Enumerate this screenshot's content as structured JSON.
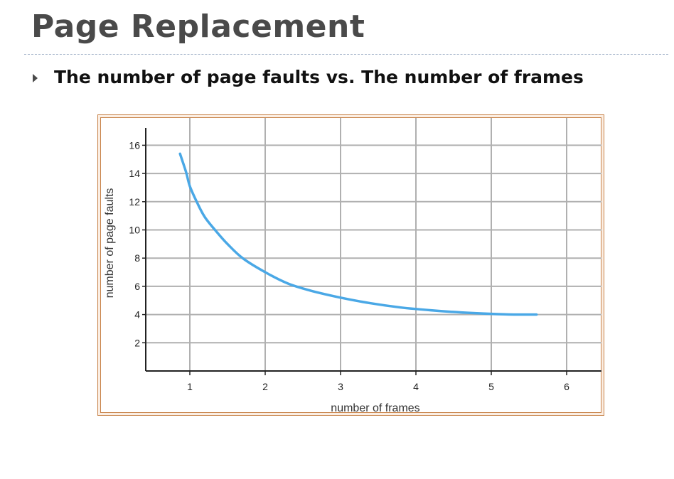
{
  "slide": {
    "title": "Page Replacement",
    "bullet": "The number of page faults vs. The number of frames"
  },
  "colors": {
    "title": "#4a4a4a",
    "curve": "#4aa8e6",
    "grid": "#b0b0b0",
    "frame": "#c8834a"
  },
  "chart_data": {
    "type": "line",
    "title": "",
    "xlabel": "number of frames",
    "ylabel": "number of page faults",
    "xlim": [
      0.4,
      6.5
    ],
    "ylim": [
      0,
      17.6
    ],
    "xticks": [
      1,
      2,
      3,
      4,
      5,
      6
    ],
    "yticks": [
      2,
      4,
      6,
      8,
      10,
      12,
      14,
      16
    ],
    "grid": true,
    "series": [
      {
        "name": "page faults",
        "x": [
          0.87,
          0.95,
          1.0,
          1.1,
          1.2,
          1.35,
          1.5,
          1.7,
          2.0,
          2.3,
          2.6,
          3.0,
          3.4,
          3.8,
          4.2,
          4.6,
          5.0,
          5.3,
          5.6
        ],
        "y": [
          15.4,
          14.1,
          13.1,
          11.9,
          10.9,
          9.9,
          9.0,
          8.0,
          7.0,
          6.2,
          5.7,
          5.2,
          4.8,
          4.5,
          4.3,
          4.15,
          4.05,
          4.0,
          4.0
        ]
      }
    ]
  }
}
